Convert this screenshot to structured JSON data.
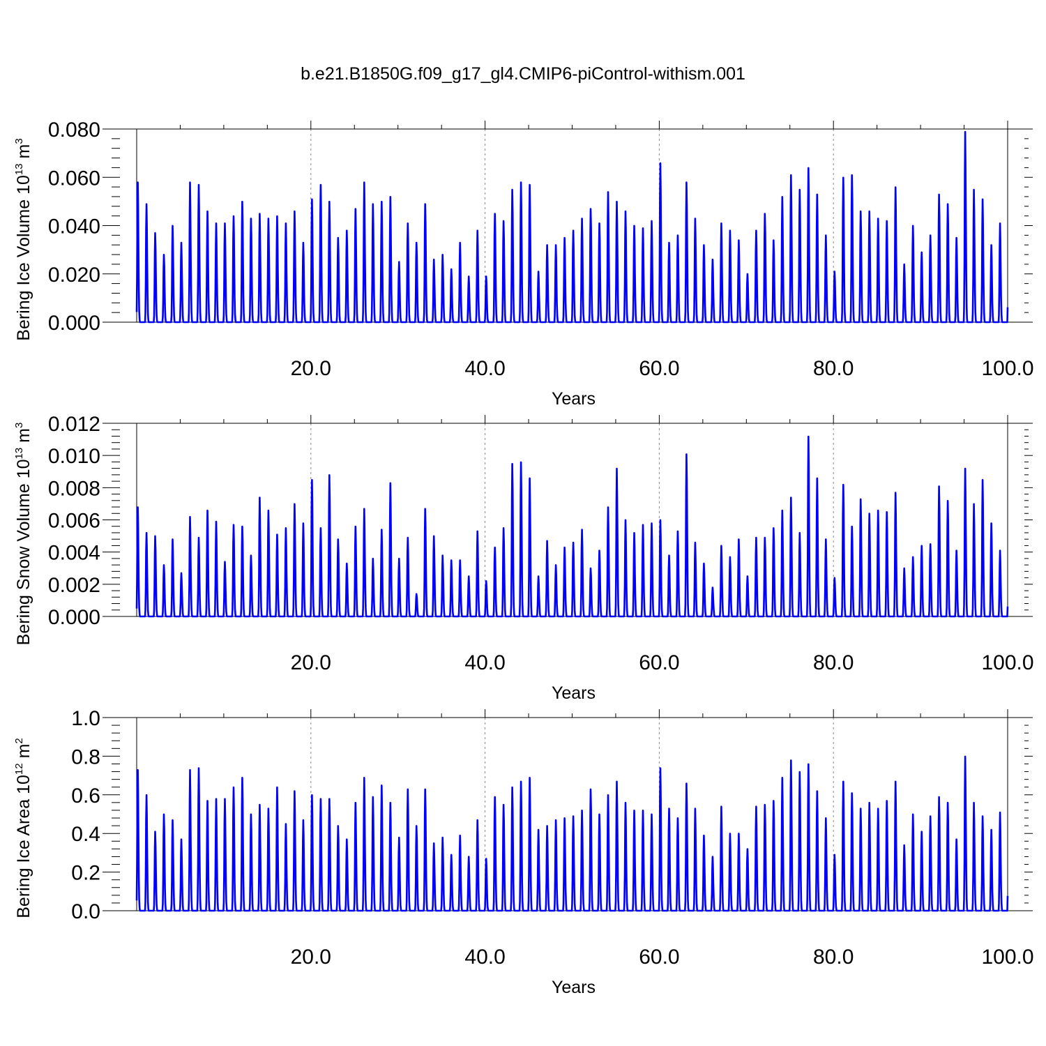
{
  "title": "b.e21.B1850G.f09_g17_gl4.CMIP6-piControl-withism.001",
  "line_color": "#0000ff",
  "chart_data": [
    {
      "type": "line",
      "title": "",
      "xlabel": "Years",
      "ylabel": "Bering Ice Volume 10",
      "ylabel_unit": "m",
      "ylabel_exp1": "13",
      "ylabel_exp2": "3",
      "xlim": [
        1,
        100
      ],
      "ylim": [
        0,
        0.08
      ],
      "xticks": [
        "20.0",
        "40.0",
        "60.0",
        "80.0",
        "100.0"
      ],
      "yticks": [
        "0.000",
        "0.020",
        "0.040",
        "0.060",
        "0.080"
      ],
      "grid_x": [
        20,
        40,
        60,
        80
      ],
      "series": [
        {
          "values": [
            0.058,
            0.049,
            0.037,
            0.028,
            0.04,
            0.033,
            0.058,
            0.057,
            0.046,
            0.041,
            0.041,
            0.044,
            0.05,
            0.043,
            0.045,
            0.043,
            0.044,
            0.041,
            0.046,
            0.033,
            0.051,
            0.057,
            0.05,
            0.035,
            0.038,
            0.047,
            0.058,
            0.049,
            0.05,
            0.052,
            0.025,
            0.041,
            0.033,
            0.049,
            0.026,
            0.028,
            0.022,
            0.033,
            0.019,
            0.038,
            0.019,
            0.045,
            0.042,
            0.055,
            0.058,
            0.057,
            0.021,
            0.032,
            0.032,
            0.035,
            0.038,
            0.043,
            0.047,
            0.041,
            0.054,
            0.05,
            0.046,
            0.04,
            0.039,
            0.042,
            0.066,
            0.033,
            0.036,
            0.058,
            0.043,
            0.032,
            0.026,
            0.041,
            0.038,
            0.034,
            0.02,
            0.038,
            0.045,
            0.034,
            0.052,
            0.061,
            0.055,
            0.064,
            0.053,
            0.036,
            0.021,
            0.06,
            0.061,
            0.046,
            0.046,
            0.043,
            0.042,
            0.056,
            0.024,
            0.04,
            0.029,
            0.036,
            0.053,
            0.049,
            0.035,
            0.079,
            0.055,
            0.051,
            0.032,
            0.041
          ]
        }
      ]
    },
    {
      "type": "line",
      "title": "",
      "xlabel": "Years",
      "ylabel": "Bering Snow Volume 10",
      "ylabel_unit": "m",
      "ylabel_exp1": "13",
      "ylabel_exp2": "3",
      "xlim": [
        1,
        100
      ],
      "ylim": [
        0,
        0.012
      ],
      "xticks": [
        "20.0",
        "40.0",
        "60.0",
        "80.0",
        "100.0"
      ],
      "yticks": [
        "0.000",
        "0.002",
        "0.004",
        "0.006",
        "0.008",
        "0.010",
        "0.012"
      ],
      "grid_x": [
        20,
        40,
        60,
        80
      ],
      "series": [
        {
          "values": [
            0.0068,
            0.0052,
            0.005,
            0.0032,
            0.0048,
            0.0027,
            0.0062,
            0.0049,
            0.0066,
            0.0059,
            0.0034,
            0.0057,
            0.0056,
            0.0038,
            0.0074,
            0.0066,
            0.0051,
            0.0055,
            0.007,
            0.0058,
            0.0085,
            0.0055,
            0.0088,
            0.0048,
            0.0033,
            0.0056,
            0.0067,
            0.0036,
            0.0054,
            0.0083,
            0.0036,
            0.0049,
            0.0014,
            0.0067,
            0.005,
            0.0038,
            0.0035,
            0.0035,
            0.0025,
            0.0053,
            0.0022,
            0.0043,
            0.0055,
            0.0095,
            0.0096,
            0.0086,
            0.0025,
            0.0047,
            0.0032,
            0.0043,
            0.0046,
            0.0054,
            0.003,
            0.0041,
            0.0068,
            0.0092,
            0.006,
            0.0052,
            0.0057,
            0.0058,
            0.006,
            0.0038,
            0.0053,
            0.0101,
            0.0046,
            0.0033,
            0.0018,
            0.0044,
            0.0037,
            0.0048,
            0.0025,
            0.0049,
            0.0049,
            0.0055,
            0.0066,
            0.0074,
            0.0052,
            0.0112,
            0.0086,
            0.0048,
            0.0024,
            0.0082,
            0.0056,
            0.0073,
            0.0064,
            0.0066,
            0.0065,
            0.0077,
            0.003,
            0.0037,
            0.0044,
            0.0045,
            0.0081,
            0.0072,
            0.0041,
            0.0092,
            0.007,
            0.0085,
            0.0058,
            0.0041
          ]
        }
      ]
    },
    {
      "type": "line",
      "title": "",
      "xlabel": "Years",
      "ylabel": "Bering Ice Area 10",
      "ylabel_unit": "m",
      "ylabel_exp1": "12",
      "ylabel_exp2": "2",
      "xlim": [
        1,
        100
      ],
      "ylim": [
        0,
        1.0
      ],
      "xticks": [
        "20.0",
        "40.0",
        "60.0",
        "80.0",
        "100.0"
      ],
      "yticks": [
        "0.0",
        "0.2",
        "0.4",
        "0.6",
        "0.8",
        "1.0"
      ],
      "grid_x": [
        20,
        40,
        60,
        80
      ],
      "series": [
        {
          "values": [
            0.73,
            0.6,
            0.41,
            0.5,
            0.47,
            0.37,
            0.73,
            0.74,
            0.57,
            0.58,
            0.58,
            0.64,
            0.69,
            0.5,
            0.55,
            0.53,
            0.64,
            0.45,
            0.62,
            0.47,
            0.6,
            0.58,
            0.58,
            0.44,
            0.37,
            0.56,
            0.69,
            0.59,
            0.65,
            0.56,
            0.38,
            0.63,
            0.44,
            0.63,
            0.35,
            0.38,
            0.29,
            0.39,
            0.28,
            0.47,
            0.27,
            0.59,
            0.55,
            0.64,
            0.67,
            0.69,
            0.42,
            0.44,
            0.47,
            0.48,
            0.49,
            0.52,
            0.63,
            0.5,
            0.6,
            0.67,
            0.56,
            0.52,
            0.52,
            0.5,
            0.74,
            0.53,
            0.48,
            0.66,
            0.53,
            0.39,
            0.28,
            0.54,
            0.4,
            0.4,
            0.32,
            0.54,
            0.55,
            0.57,
            0.69,
            0.78,
            0.72,
            0.76,
            0.62,
            0.48,
            0.29,
            0.67,
            0.61,
            0.53,
            0.56,
            0.53,
            0.57,
            0.67,
            0.34,
            0.5,
            0.41,
            0.49,
            0.59,
            0.56,
            0.37,
            0.8,
            0.56,
            0.49,
            0.42,
            0.51
          ]
        }
      ]
    }
  ]
}
